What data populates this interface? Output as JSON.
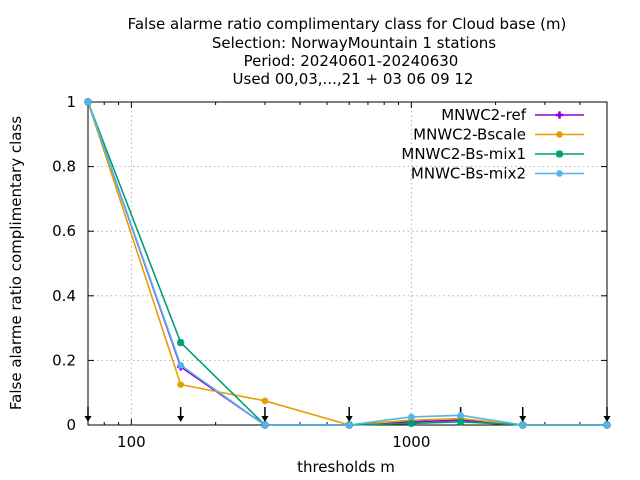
{
  "chart_data": {
    "type": "line",
    "title_lines": [
      "False alarme ratio complimentary class  for Cloud base (m)",
      "Selection: NorwayMountain      1 stations",
      "Period: 20240601-20240630",
      "Used 00,03,...,21 + 03 06 09 12"
    ],
    "xlabel": "thresholds m",
    "ylabel": "False alarme ratio complimentary class",
    "x_scale": "log",
    "xlim": [
      70,
      5000
    ],
    "ylim": [
      0,
      1
    ],
    "x_ticks": [
      100,
      1000
    ],
    "x_tick_labels": [
      "100",
      "1000"
    ],
    "y_ticks": [
      0,
      0.2,
      0.4,
      0.6,
      0.8,
      1
    ],
    "y_tick_labels": [
      "0",
      "0.2",
      "0.4",
      "0.6",
      "0.8",
      "1"
    ],
    "grid": true,
    "legend_position": "top-right",
    "threshold_markers": [
      70,
      150,
      300,
      600,
      1500,
      2500,
      5000
    ],
    "x": [
      70,
      150,
      300,
      600,
      1000,
      1500,
      2500,
      5000
    ],
    "series": [
      {
        "name": "MNWC2-ref",
        "color": "#9400d3",
        "marker": "plus-star",
        "values": [
          1,
          0.18,
          0,
          0,
          0.01,
          0.015,
          0,
          0
        ]
      },
      {
        "name": "MNWC2-Bscale",
        "color": "#e69f00",
        "marker": "circle",
        "values": [
          1,
          0.125,
          0.075,
          0,
          0.015,
          0.02,
          0,
          0
        ]
      },
      {
        "name": "MNWC2-Bs-mix1",
        "color": "#009e73",
        "marker": "star",
        "values": [
          1,
          0.255,
          0,
          0,
          0.005,
          0.01,
          0,
          0
        ]
      },
      {
        "name": "MNWC-Bs-mix2",
        "color": "#56b4e9",
        "marker": "circle",
        "values": [
          1,
          0.185,
          0,
          0,
          0.025,
          0.03,
          0,
          0
        ]
      }
    ]
  }
}
